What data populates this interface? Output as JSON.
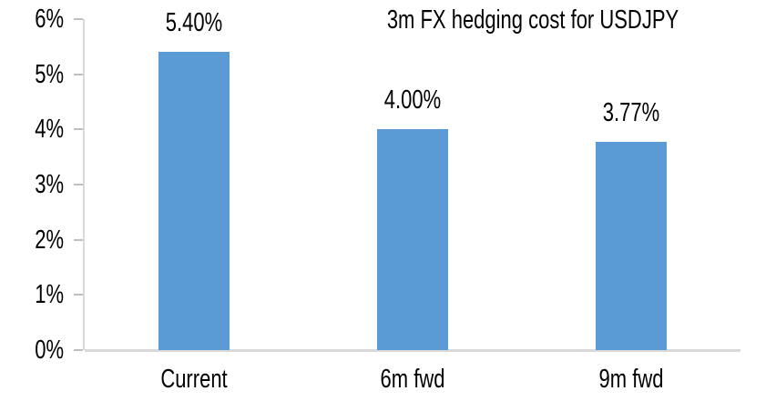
{
  "chart_data": {
    "type": "bar",
    "title": "3m FX hedging cost for USDJPY",
    "categories": [
      "Current",
      "6m fwd",
      "9m fwd"
    ],
    "values": [
      5.4,
      4.0,
      3.77
    ],
    "data_labels": [
      "5.40%",
      "4.00%",
      "3.77%"
    ],
    "yticks": [
      {
        "label": "6%",
        "value": 6
      },
      {
        "label": "5%",
        "value": 5
      },
      {
        "label": "4%",
        "value": 4
      },
      {
        "label": "3%",
        "value": 3
      },
      {
        "label": "2%",
        "value": 2
      },
      {
        "label": "1%",
        "value": 1
      },
      {
        "label": "0%",
        "value": 0
      }
    ],
    "ylim": [
      0,
      6
    ],
    "xlabel": "",
    "ylabel": "",
    "grid": "off",
    "legend": "none",
    "colors": {
      "bar": "#5B9BD5",
      "axis_line": "#D9D9D9",
      "tick_mark": "#BFBFBF",
      "text": "#000000",
      "background": "#FFFFFF"
    }
  }
}
